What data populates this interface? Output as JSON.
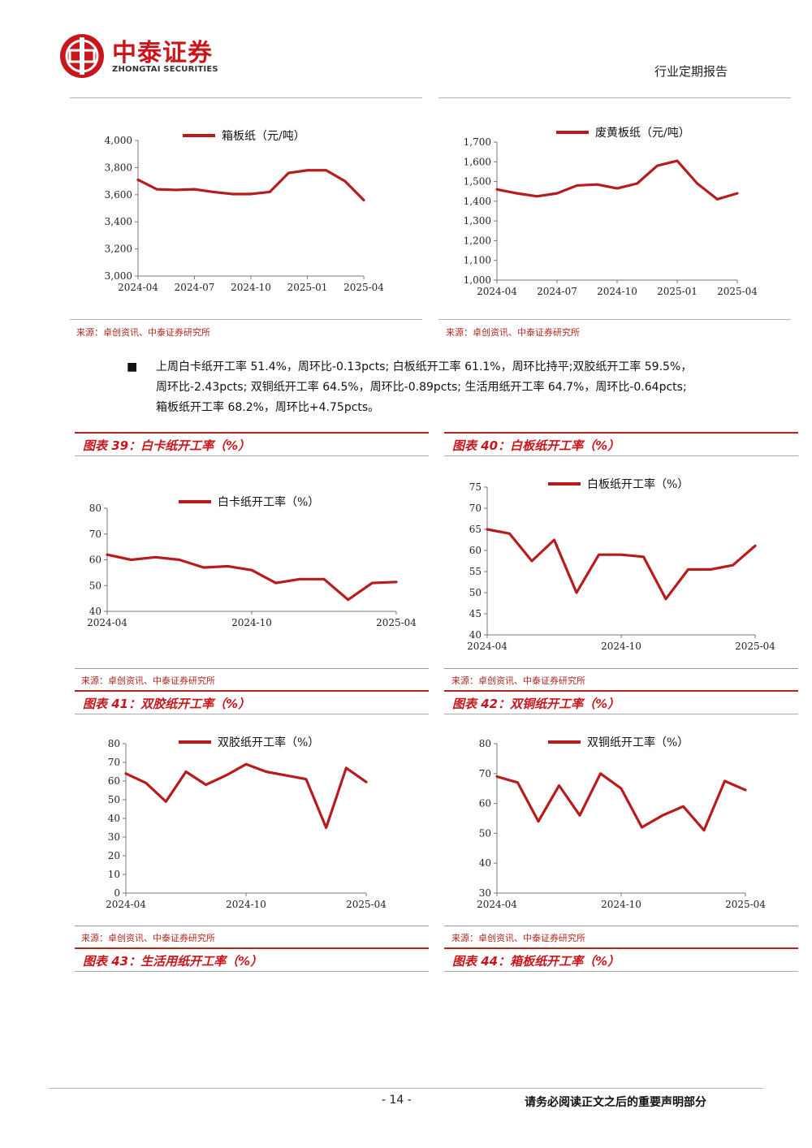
{
  "header": {
    "logo_cn": "中泰证券",
    "logo_en": "ZHONGTAI SECURITIES",
    "report_type": "行业定期报告"
  },
  "bullet": {
    "symbol": "■",
    "lines": [
      "上周白卡纸开工率 51.4%，周环比-0.13pcts; 白板纸开工率 61.1%，周环比持平;双胶纸开工率 59.5%，",
      "周环比-2.43pcts; 双铜纸开工率 64.5%，周环比-0.89pcts; 生活用纸开工率 64.7%，周环比-0.64pcts;",
      "箱板纸开工率 68.2%，周环比+4.75pcts。"
    ]
  },
  "sources": {
    "s1": "来源：卓创资讯、中泰证券研究所",
    "s2": "来源：卓创资讯、中泰证券研究所",
    "s3": "来源：卓创资讯、中泰证券研究所",
    "s4": "来源：卓创资讯、中泰证券研究所",
    "s5": "来源：卓创资讯、中泰证券研究所",
    "s6": "来源：卓创资讯、中泰证券研究所"
  },
  "figures": {
    "f39": "图表 39：白卡纸开工率（%）",
    "f40": "图表 40：白板纸开工率（%）",
    "f41": "图表 41：双胶纸开工率（%）",
    "f42": "图表 42：双铜纸开工率（%）",
    "f43": "图表 43：生活用纸开工率（%）",
    "f44": "图表 44：箱板纸开工率（%）"
  },
  "footer": {
    "page": "- 14 -",
    "note": "请务必阅读正文之后的重要声明部分"
  },
  "colors": {
    "brand_red": "#c8161d",
    "line_red": "#b71c1c"
  },
  "chart_data": [
    {
      "id": "c1",
      "type": "line",
      "series": [
        {
          "name": "箱板纸（元/吨）",
          "x": [
            "2024-04",
            "2024-05",
            "2024-06",
            "2024-07",
            "2024-08",
            "2024-09",
            "2024-10",
            "2024-11",
            "2024-12",
            "2025-01",
            "2025-02",
            "2025-03",
            "2025-04"
          ],
          "values": [
            3710,
            3640,
            3635,
            3640,
            3620,
            3605,
            3605,
            3620,
            3760,
            3780,
            3780,
            3700,
            3560
          ]
        }
      ],
      "xticks": [
        "2024-04",
        "2024-07",
        "2024-10",
        "2025-01",
        "2025-04"
      ],
      "yticks": [
        "3,000",
        "3,200",
        "3,400",
        "3,600",
        "3,800",
        "4,000"
      ],
      "ylim": [
        3000,
        4000
      ],
      "legend": "top-center",
      "grid": false
    },
    {
      "id": "c2",
      "type": "line",
      "series": [
        {
          "name": "废黄板纸（元/吨）",
          "x": [
            "2024-04",
            "2024-05",
            "2024-06",
            "2024-07",
            "2024-08",
            "2024-09",
            "2024-10",
            "2024-11",
            "2024-12",
            "2025-01",
            "2025-02",
            "2025-03",
            "2025-04"
          ],
          "values": [
            1460,
            1440,
            1425,
            1440,
            1480,
            1485,
            1465,
            1490,
            1580,
            1605,
            1490,
            1410,
            1440
          ]
        }
      ],
      "xticks": [
        "2024-04",
        "2024-07",
        "2024-10",
        "2025-01",
        "2025-04"
      ],
      "yticks": [
        "1,000",
        "1,100",
        "1,200",
        "1,300",
        "1,400",
        "1,500",
        "1,600",
        "1,700"
      ],
      "ylim": [
        1000,
        1700
      ],
      "legend": "top-center",
      "grid": false
    },
    {
      "id": "c3",
      "type": "line",
      "series": [
        {
          "name": "白卡纸开工率（%）",
          "x": [
            "2024-04",
            "2024-05",
            "2024-06",
            "2024-07",
            "2024-08",
            "2024-09",
            "2024-10",
            "2024-11",
            "2024-12",
            "2025-01",
            "2025-02",
            "2025-03",
            "2025-04"
          ],
          "values": [
            62,
            60,
            61,
            60,
            57,
            57.5,
            56,
            51,
            52.5,
            52.5,
            44.5,
            51,
            51.4
          ]
        }
      ],
      "xticks": [
        "2024-04",
        "2024-10",
        "2025-04"
      ],
      "yticks": [
        "40",
        "50",
        "60",
        "70",
        "80"
      ],
      "ylim": [
        40,
        80
      ],
      "legend": "top-center",
      "grid": false
    },
    {
      "id": "c4",
      "type": "line",
      "series": [
        {
          "name": "白板纸开工率（%）",
          "x": [
            "2024-04",
            "2024-05",
            "2024-06",
            "2024-07",
            "2024-08",
            "2024-09",
            "2024-10",
            "2024-11",
            "2024-12",
            "2025-01",
            "2025-02",
            "2025-03",
            "2025-04"
          ],
          "values": [
            65,
            64,
            57.5,
            62.5,
            50,
            59,
            59,
            58.5,
            48.5,
            55.5,
            55.5,
            56.5,
            61.1
          ]
        }
      ],
      "xticks": [
        "2024-04",
        "2024-10",
        "2025-04"
      ],
      "yticks": [
        "40",
        "45",
        "50",
        "55",
        "60",
        "65",
        "70",
        "75"
      ],
      "ylim": [
        40,
        75
      ],
      "legend": "top-center",
      "grid": false
    },
    {
      "id": "c5",
      "type": "line",
      "series": [
        {
          "name": "双胶纸开工率（%）",
          "x": [
            "2024-04",
            "2024-05",
            "2024-06",
            "2024-07",
            "2024-08",
            "2024-09",
            "2024-10",
            "2024-11",
            "2024-12",
            "2025-01",
            "2025-02",
            "2025-03",
            "2025-04"
          ],
          "values": [
            64,
            59,
            49,
            65,
            58,
            63,
            69,
            65,
            63,
            61,
            35,
            67,
            59.5
          ]
        }
      ],
      "xticks": [
        "2024-04",
        "2024-10",
        "2025-04"
      ],
      "yticks": [
        "0",
        "10",
        "20",
        "30",
        "40",
        "50",
        "60",
        "70",
        "80"
      ],
      "ylim": [
        0,
        80
      ],
      "legend": "top-center",
      "grid": false
    },
    {
      "id": "c6",
      "type": "line",
      "series": [
        {
          "name": "双铜纸开工率（%）",
          "x": [
            "2024-04",
            "2024-05",
            "2024-06",
            "2024-07",
            "2024-08",
            "2024-09",
            "2024-10",
            "2024-11",
            "2024-12",
            "2025-01",
            "2025-02",
            "2025-03",
            "2025-04"
          ],
          "values": [
            69,
            67,
            54,
            66,
            56,
            70,
            65,
            52,
            56,
            59,
            51,
            67.5,
            64.5
          ]
        }
      ],
      "xticks": [
        "2024-04",
        "2024-10",
        "2025-04"
      ],
      "yticks": [
        "30",
        "40",
        "50",
        "60",
        "70",
        "80"
      ],
      "ylim": [
        30,
        80
      ],
      "legend": "top-center",
      "grid": false
    }
  ]
}
